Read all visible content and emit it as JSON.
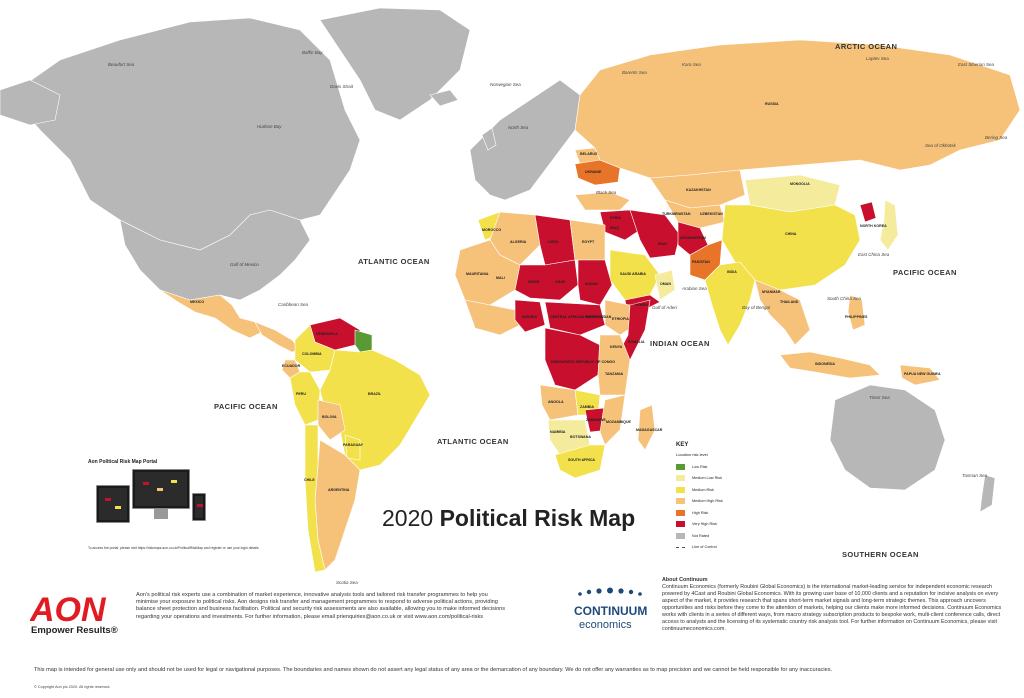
{
  "title": {
    "year": "2020",
    "rest": "Political Risk Map"
  },
  "colors": {
    "ocean": "#ffffff",
    "not_rated": "#b7b7b7",
    "low": "#5a9a35",
    "medium_low": "#f4ec9c",
    "medium": "#f2e14b",
    "medium_high": "#f6c27a",
    "high": "#e8742a",
    "very_high": "#c8102e",
    "aon_red": "#e11b22",
    "continuum_blue": "#1d4a7a"
  },
  "oceans": [
    {
      "id": "arctic-ocean",
      "label": "ARCTIC OCEAN"
    },
    {
      "id": "atlantic-ocean-north",
      "label": "ATLANTIC OCEAN"
    },
    {
      "id": "atlantic-ocean-south",
      "label": "ATLANTIC OCEAN"
    },
    {
      "id": "pacific-ocean-east",
      "label": "PACIFIC OCEAN"
    },
    {
      "id": "pacific-ocean-west",
      "label": "PACIFIC OCEAN"
    },
    {
      "id": "indian-ocean",
      "label": "INDIAN OCEAN"
    },
    {
      "id": "southern-ocean",
      "label": "SOUTHERN OCEAN"
    }
  ],
  "seas": [
    {
      "id": "beaufort-sea",
      "label": "Beaufort Sea"
    },
    {
      "id": "baffin-bay",
      "label": "Baffin Bay"
    },
    {
      "id": "davis-strait",
      "label": "Davis Strait"
    },
    {
      "id": "hudson-bay",
      "label": "Hudson Bay"
    },
    {
      "id": "norwegian-sea",
      "label": "Norwegian Sea"
    },
    {
      "id": "barents-sea",
      "label": "Barents Sea"
    },
    {
      "id": "kara-sea",
      "label": "Kara Sea"
    },
    {
      "id": "laptev-sea",
      "label": "Laptev Sea"
    },
    {
      "id": "east-siberian-sea",
      "label": "East Siberian Sea"
    },
    {
      "id": "bering-sea",
      "label": "Bering Sea"
    },
    {
      "id": "sea-of-okhotsk",
      "label": "Sea of Okhotsk"
    },
    {
      "id": "north-sea",
      "label": "North Sea"
    },
    {
      "id": "black-sea",
      "label": "Black Sea"
    },
    {
      "id": "gulf-of-mexico",
      "label": "Gulf of Mexico"
    },
    {
      "id": "caribbean-sea",
      "label": "Caribbean Sea"
    },
    {
      "id": "arabian-sea",
      "label": "Arabian Sea"
    },
    {
      "id": "bay-of-bengal",
      "label": "Bay of Bengal"
    },
    {
      "id": "east-china-sea",
      "label": "East China Sea"
    },
    {
      "id": "south-china-sea",
      "label": "South China Sea"
    },
    {
      "id": "gulf-of-aden",
      "label": "Gulf of Aden"
    },
    {
      "id": "timor-sea",
      "label": "Timor Sea"
    },
    {
      "id": "tasman-sea",
      "label": "Tasman Sea"
    },
    {
      "id": "scotia-sea",
      "label": "Scotia Sea"
    }
  ],
  "countries": [
    {
      "id": "russia",
      "label": "RUSSIA"
    },
    {
      "id": "kazakhstan",
      "label": "KAZAKHSTAN"
    },
    {
      "id": "mongolia",
      "label": "MONGOLIA"
    },
    {
      "id": "china",
      "label": "CHINA"
    },
    {
      "id": "india",
      "label": "INDIA"
    },
    {
      "id": "iran",
      "label": "IRAN"
    },
    {
      "id": "afghanistan",
      "label": "AFGHANISTAN"
    },
    {
      "id": "pakistan",
      "label": "PAKISTAN"
    },
    {
      "id": "saudi-arabia",
      "label": "SAUDI ARABIA"
    },
    {
      "id": "yemen",
      "label": "YEMEN"
    },
    {
      "id": "oman",
      "label": "OMAN"
    },
    {
      "id": "ukraine",
      "label": "UKRAINE"
    },
    {
      "id": "belarus",
      "label": "BELARUS"
    },
    {
      "id": "libya",
      "label": "LIBYA"
    },
    {
      "id": "egypt",
      "label": "EGYPT"
    },
    {
      "id": "algeria",
      "label": "ALGERIA"
    },
    {
      "id": "morocco",
      "label": "MOROCCO"
    },
    {
      "id": "mauritania",
      "label": "MAURITANIA"
    },
    {
      "id": "mali",
      "label": "MALI"
    },
    {
      "id": "niger",
      "label": "NIGER"
    },
    {
      "id": "chad",
      "label": "CHAD"
    },
    {
      "id": "sudan",
      "label": "SUDAN"
    },
    {
      "id": "south-sudan",
      "label": "SOUTH SUDAN"
    },
    {
      "id": "ethiopia",
      "label": "ETHIOPIA"
    },
    {
      "id": "somalia",
      "label": "SOMALIA"
    },
    {
      "id": "nigeria",
      "label": "NIGERIA"
    },
    {
      "id": "car",
      "label": "CENTRAL AFRICAN REPUBLIC"
    },
    {
      "id": "drc",
      "label": "DEMOCRATIC REPUBLIC OF CONGO"
    },
    {
      "id": "angola",
      "label": "ANGOLA"
    },
    {
      "id": "zambia",
      "label": "ZAMBIA"
    },
    {
      "id": "tanzania",
      "label": "TANZANIA"
    },
    {
      "id": "kenya",
      "label": "KENYA"
    },
    {
      "id": "namibia",
      "label": "NAMIBIA"
    },
    {
      "id": "botswana",
      "label": "BOTSWANA"
    },
    {
      "id": "zimbabwe",
      "label": "ZIMBABWE"
    },
    {
      "id": "mozambique",
      "label": "MOZAMBIQUE"
    },
    {
      "id": "madagascar",
      "label": "MADAGASCAR"
    },
    {
      "id": "south-africa",
      "label": "SOUTH AFRICA"
    },
    {
      "id": "venezuela",
      "label": "VENEZUELA"
    },
    {
      "id": "colombia",
      "label": "COLOMBIA"
    },
    {
      "id": "ecuador",
      "label": "ECUADOR"
    },
    {
      "id": "peru",
      "label": "PERU"
    },
    {
      "id": "brazil",
      "label": "BRAZIL"
    },
    {
      "id": "bolivia",
      "label": "BOLIVIA"
    },
    {
      "id": "paraguay",
      "label": "PARAGUAY"
    },
    {
      "id": "argentina",
      "label": "ARGENTINA"
    },
    {
      "id": "chile",
      "label": "CHILE"
    },
    {
      "id": "mexico",
      "label": "MEXICO"
    },
    {
      "id": "thailand",
      "label": "THAILAND"
    },
    {
      "id": "myanmar",
      "label": "MYANMAR"
    },
    {
      "id": "indonesia",
      "label": "INDONESIA"
    },
    {
      "id": "papua-new-guinea",
      "label": "PAPUA NEW GUINEA"
    },
    {
      "id": "philippines",
      "label": "PHILIPPINES"
    },
    {
      "id": "north-korea",
      "label": "NORTH KOREA"
    },
    {
      "id": "turkmenistan",
      "label": "TURKMENISTAN"
    },
    {
      "id": "uzbekistan",
      "label": "UZBEKISTAN"
    },
    {
      "id": "iraq",
      "label": "IRAQ"
    },
    {
      "id": "syria",
      "label": "SYRIA"
    }
  ],
  "key": {
    "heading": "KEY",
    "subheading": "Location risk level",
    "items": [
      {
        "id": "low",
        "label": "Low Risk"
      },
      {
        "id": "medium_low",
        "label": "Medium Low Risk"
      },
      {
        "id": "medium",
        "label": "Medium Risk"
      },
      {
        "id": "medium_high",
        "label": "Medium High Risk"
      },
      {
        "id": "high",
        "label": "High Risk"
      },
      {
        "id": "very_high",
        "label": "Very High Risk"
      },
      {
        "id": "not_rated",
        "label": "Not Rated"
      }
    ],
    "line_label": "Line of Control"
  },
  "portal": {
    "title": "Aon Political Risk Map Portal",
    "note": "To access the portal, please visit https://riskmaps.aon.co.uk/PoliticalRiskMap and register or use your login details."
  },
  "aon": {
    "logo_text": "AON",
    "tagline": "Empower Results®",
    "text": "Aon's political risk experts use a combination of market experience, innovative analysis tools and tailored risk transfer programmes to help you minimise your exposure to political risks. Aon designs risk transfer and management programmes to respond to adverse political actions, providing balance sheet protection and business facilitation. Political and security risk assessments are also available, allowing you to make informed decisions regarding your operations and investments. For further information, please email prienquiries@aon.co.uk or visit www.aon.com/political-risks"
  },
  "continuum": {
    "logo_line1": "CONTINUUM",
    "logo_line2": "economics",
    "about_title": "About Continuum",
    "about_text": "Continuum Economics (formerly Roubini Global Economics) is the international market-leading service for independent economic research powered by 4Cast and Roubini Global Economics. With its growing user base of 10,000 clients and a reputation for incisive analysis on every aspect of the market, it provides research that spans short-term market signals and long-term strategic themes. This approach uncovers opportunities and risks before they come to the attention of markets, helping our clients make more informed decisions. Continuum Economics works with clients in a series of different ways, from macro strategy subscription products to bespoke work, multi-client conference calls, direct access to analysts and the licensing of its systematic country risk analysis tool. For further information on Continuum Economics, please visit continuumeconomics.com."
  },
  "disclaimer": "This map is intended for general use only and should not be used for legal or navigational purposes. The boundaries and names shown do not assert any legal status of any area or the demarcation of any boundary. We do not offer any warranties as to map precision and we cannot be held responsible for any inaccuracies.",
  "copyright": "© Copyright Aon plc 2020. All rights reserved."
}
